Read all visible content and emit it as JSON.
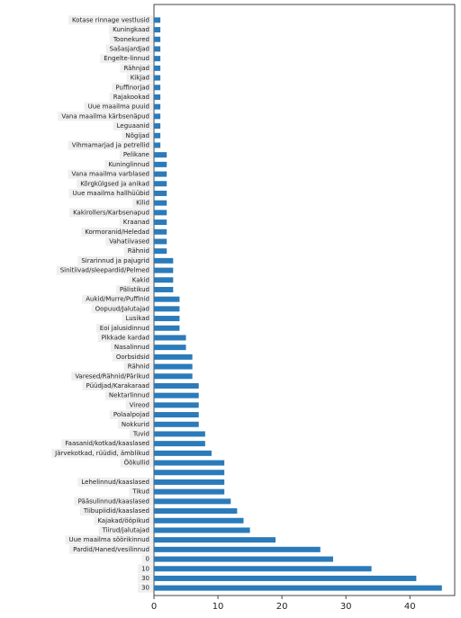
{
  "chart_data": {
    "type": "barh",
    "color": "#2b7bba",
    "categories": [
      "Kotase rinnage vestlusid",
      "Kuningkaad",
      "Toonekured",
      "Sašasjardjad",
      "Engelte-linnud",
      "Rähnjad",
      "Kikjad",
      "Puffinorjad",
      "Rajakookad",
      "Uue maailma puuid",
      "Vana maailma kärbsenäpud",
      "Leguaanid",
      "Nõgijad",
      "Vihmamarjad ja petrellid",
      "Pelikane",
      "Kuninglinnud",
      "Vana maailma varblased",
      "Kõrgkülgsed ja anikad",
      "Uue maailma hallhüübid",
      "Kilid",
      "Kakirollers/Karbsenapud",
      "Kraanad",
      "Kormoranid/Heledad",
      "Vahatiivased",
      "Rähnid",
      "Sirarinnud ja pajugrid",
      "Sinitiivad/sleepardid/Pelmed",
      "Kakid",
      "Pälistikud",
      "Aukid/Murre/Puffinid",
      "Oopuud/Jalutajad",
      "Lusikad",
      "Eoi jalusidinnud",
      "Pikkade kardad",
      "Nasalinnud",
      "Oorbsidsid",
      "Rähnid",
      "Varesed/Rähnid/Pärikud",
      "Püüdjad/Karakaraad",
      "Nektarlinnud",
      "Vireod",
      "Polaalpojad",
      "Nokkurid",
      "Tuvid",
      "Faasanid/kotkad/kaaslased",
      "Järvekotkad, rüüdid, ämblikud",
      "Öökullid",
      null,
      "Lehelinnud/kaaslased",
      "Tikud",
      "Pääsulinnud/kaaslased",
      "Tiibupiidid/kaaslased",
      "Kajakad/ööpikud",
      "Tiirud/jalutajad",
      "Uue maailma söörikinnud",
      "Pardid/Haned/vesilinnud",
      "0",
      "10",
      "30",
      "30"
    ],
    "values": [
      1,
      1,
      1,
      1,
      1,
      1,
      1,
      1,
      1,
      1,
      1,
      1,
      1,
      1,
      2,
      2,
      2,
      2,
      2,
      2,
      2,
      2,
      2,
      2,
      2,
      3,
      3,
      3,
      3,
      4,
      4,
      4,
      4,
      5,
      5,
      6,
      6,
      6,
      7,
      7,
      7,
      7,
      7,
      8,
      8,
      9,
      11,
      11,
      11,
      11,
      12,
      13,
      14,
      15,
      19,
      26,
      28,
      34,
      41,
      45
    ],
    "xlim": [
      0,
      47
    ],
    "xticks": [
      0,
      10,
      20,
      30,
      40
    ]
  }
}
